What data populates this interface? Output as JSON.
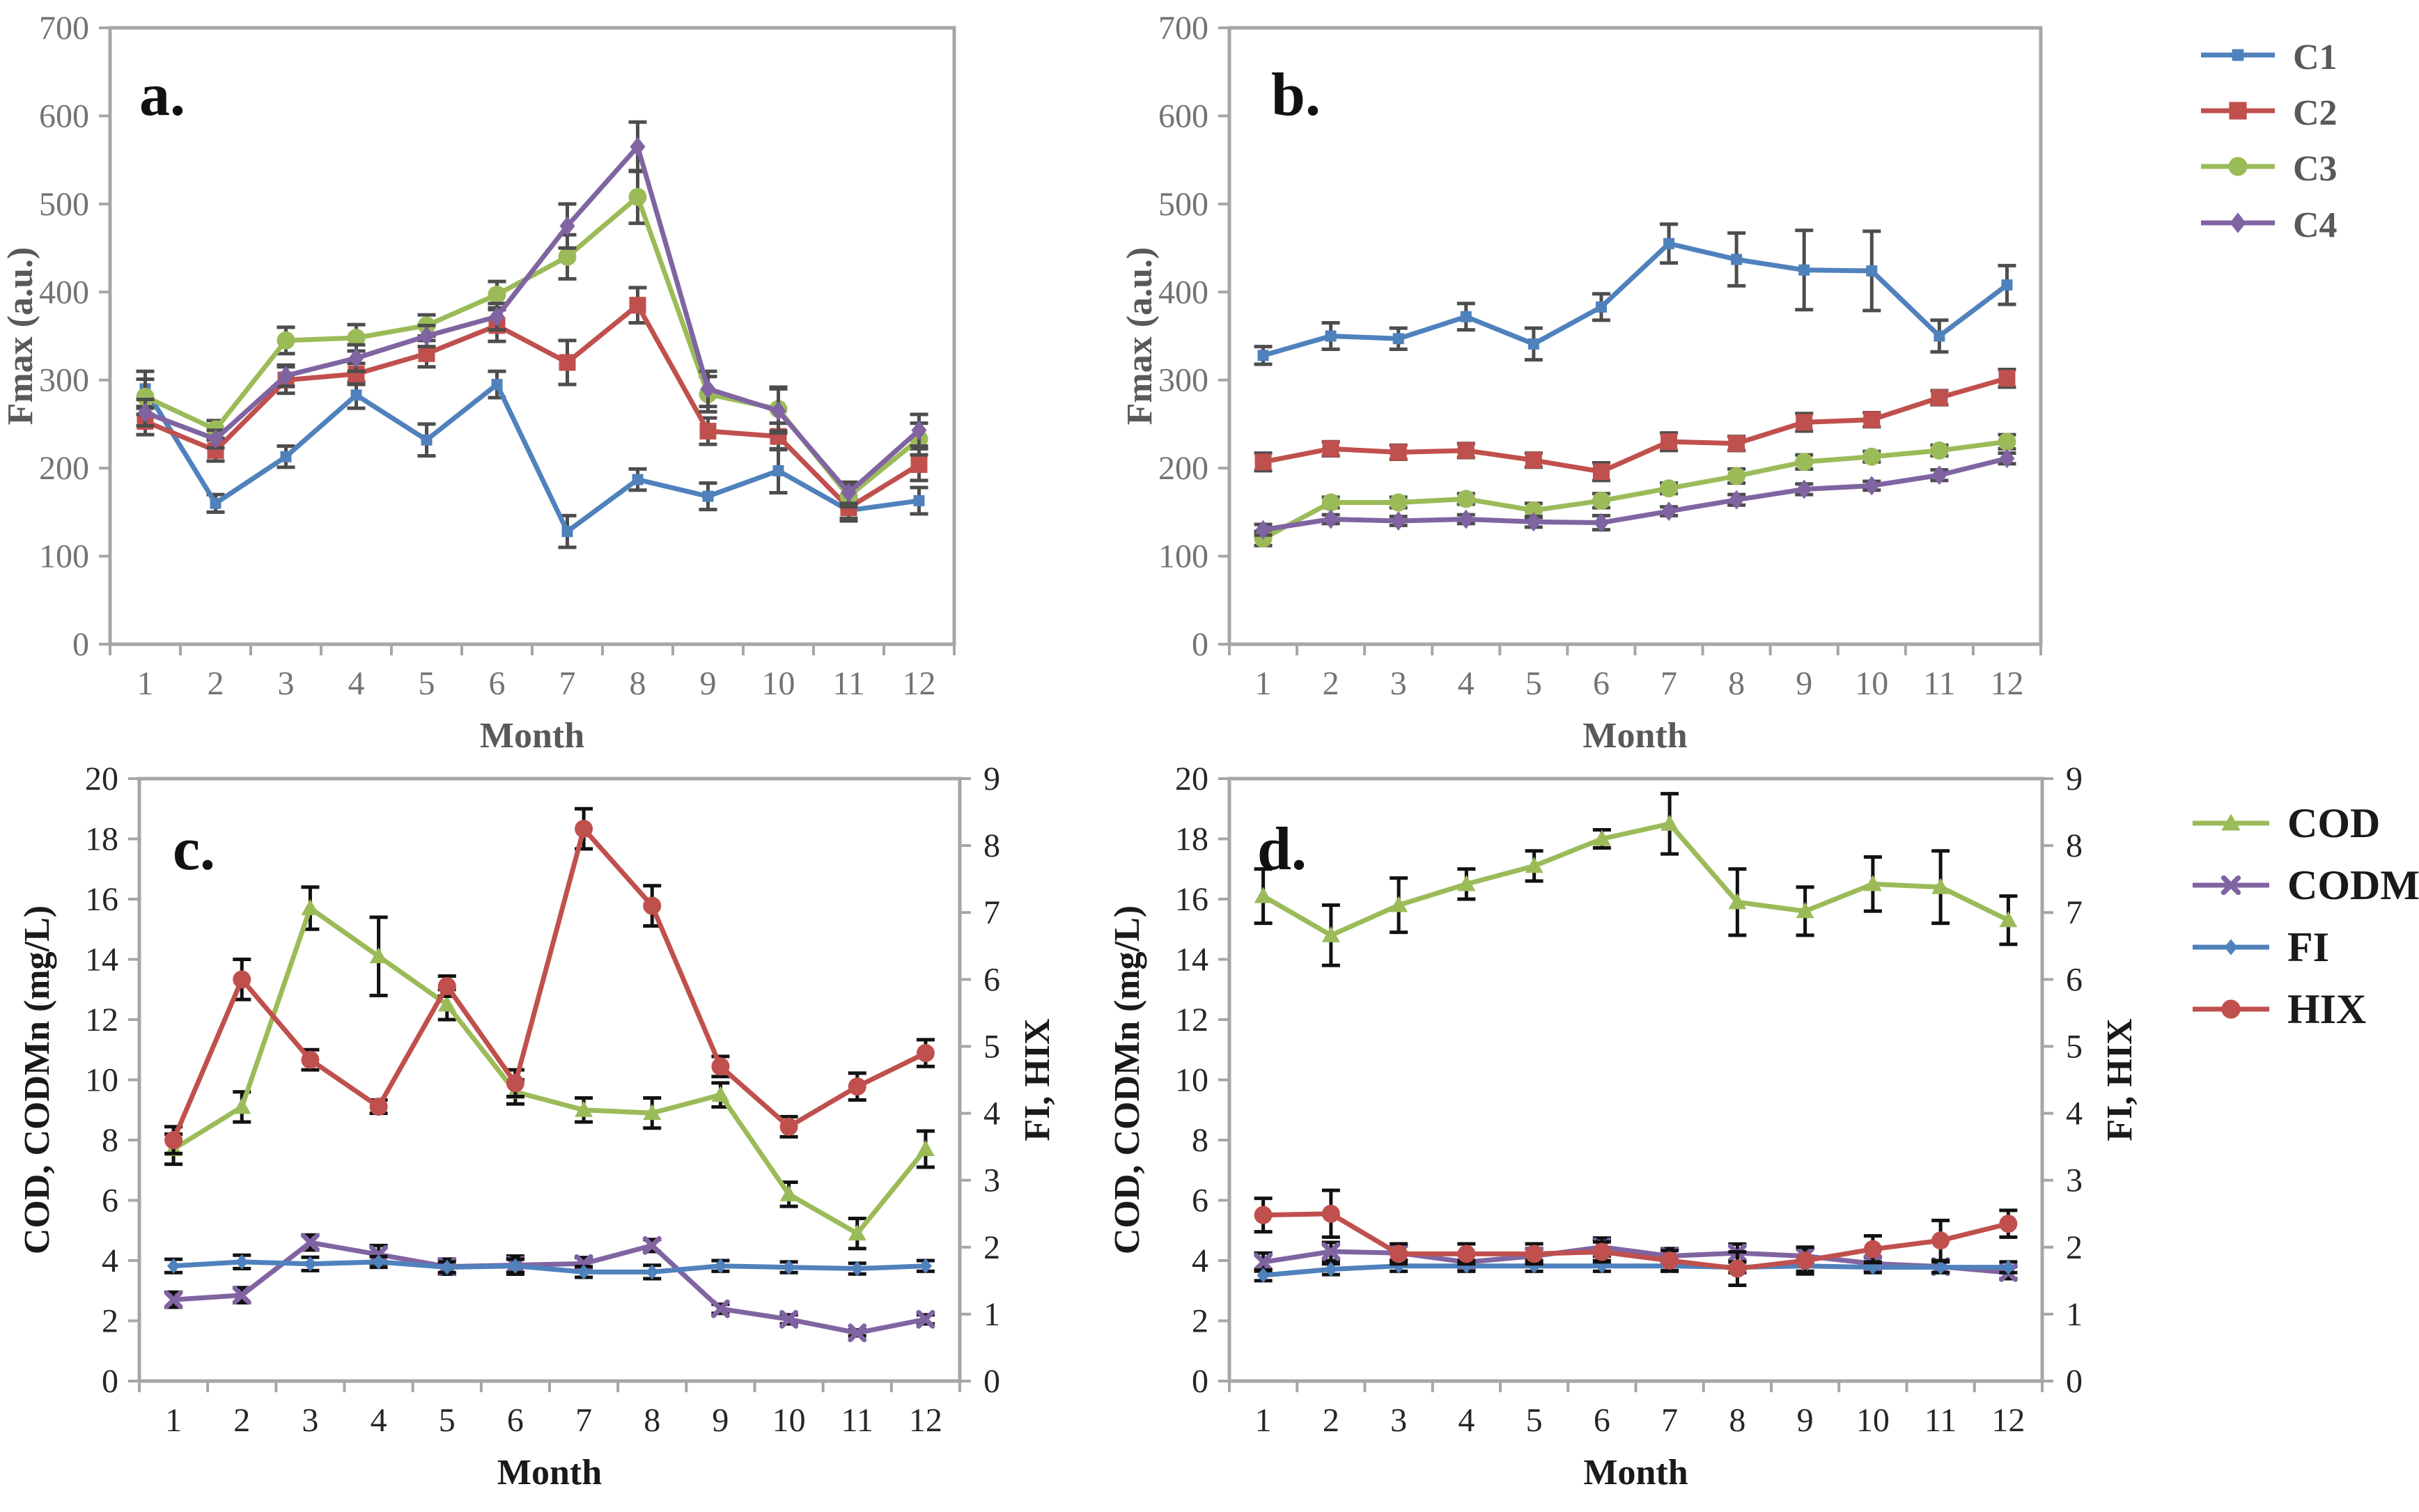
{
  "figure": {
    "bg": "#ffffff",
    "colors": {
      "c1_blue": "#4F81BD",
      "c2_red": "#C0504D",
      "c3_green": "#9BBB59",
      "c4_purple": "#8064A2",
      "axis_gray": "#A6A6A6",
      "tick_gray": "#737373",
      "tick_black": "#262626",
      "label_dark": "#595959",
      "label_black": "#1A1A1A",
      "errbar_dark": "#4D4D4D",
      "errbar_black": "#111111"
    }
  },
  "legends": [
    {
      "id": "legend-fmax",
      "entries": [
        {
          "label": "C1",
          "color": "c1_blue",
          "marker": "square-small"
        },
        {
          "label": "C2",
          "color": "c2_red",
          "marker": "square"
        },
        {
          "label": "C3",
          "color": "c3_green",
          "marker": "circle"
        },
        {
          "label": "C4",
          "color": "c4_purple",
          "marker": "diamond"
        }
      ]
    },
    {
      "id": "legend-wq",
      "entries": [
        {
          "label": "COD",
          "color": "c3_green",
          "marker": "triangle"
        },
        {
          "label": "CODMn",
          "color": "c4_purple",
          "marker": "xcross"
        },
        {
          "label": "FI",
          "color": "c1_blue",
          "marker": "diamond-small"
        },
        {
          "label": "HIX",
          "color": "c2_red",
          "marker": "circle"
        }
      ]
    }
  ],
  "chart_data": [
    {
      "id": "a",
      "type": "line",
      "panel_label": "a.",
      "xlabel": "Month",
      "ylabel": "Fmax (a.u.)",
      "x": [
        1,
        2,
        3,
        4,
        5,
        6,
        7,
        8,
        9,
        10,
        11,
        12
      ],
      "ylim": [
        0,
        700
      ],
      "ytick_step": 100,
      "series": [
        {
          "name": "C1",
          "color": "c1_blue",
          "marker": "square-small",
          "axis": "left",
          "values": [
            290,
            160,
            213,
            283,
            232,
            295,
            128,
            187,
            168,
            197,
            152,
            163
          ],
          "errors": [
            20,
            10,
            12,
            15,
            18,
            15,
            18,
            12,
            15,
            25,
            12,
            15
          ]
        },
        {
          "name": "C2",
          "color": "c2_red",
          "marker": "square",
          "axis": "left",
          "values": [
            253,
            220,
            300,
            307,
            330,
            362,
            320,
            385,
            242,
            236,
            155,
            204
          ],
          "errors": [
            15,
            12,
            15,
            12,
            15,
            18,
            25,
            20,
            15,
            15,
            12,
            18
          ]
        },
        {
          "name": "C3",
          "color": "c3_green",
          "marker": "circle",
          "axis": "left",
          "values": [
            281,
            244,
            345,
            348,
            362,
            397,
            440,
            508,
            284,
            267,
            168,
            233
          ],
          "errors": [
            20,
            10,
            15,
            15,
            12,
            15,
            25,
            30,
            20,
            25,
            12,
            18
          ]
        },
        {
          "name": "C4",
          "color": "c4_purple",
          "marker": "diamond",
          "axis": "left",
          "values": [
            263,
            233,
            305,
            325,
            350,
            372,
            475,
            565,
            290,
            265,
            172,
            243
          ],
          "errors": [
            15,
            10,
            12,
            15,
            12,
            15,
            25,
            28,
            20,
            25,
            12,
            18
          ]
        }
      ]
    },
    {
      "id": "b",
      "type": "line",
      "panel_label": "b.",
      "xlabel": "Month",
      "ylabel": "Fmax (a.u.)",
      "x": [
        1,
        2,
        3,
        4,
        5,
        6,
        7,
        8,
        9,
        10,
        11,
        12
      ],
      "ylim": [
        0,
        700
      ],
      "ytick_step": 100,
      "series": [
        {
          "name": "C1",
          "color": "c1_blue",
          "marker": "square-small",
          "axis": "left",
          "values": [
            328,
            350,
            347,
            372,
            341,
            383,
            455,
            437,
            425,
            424,
            350,
            408
          ],
          "errors": [
            10,
            15,
            12,
            15,
            18,
            15,
            22,
            30,
            45,
            45,
            18,
            22
          ]
        },
        {
          "name": "C2",
          "color": "c2_red",
          "marker": "square",
          "axis": "left",
          "values": [
            207,
            222,
            218,
            220,
            209,
            196,
            230,
            228,
            252,
            255,
            280,
            302
          ],
          "errors": [
            10,
            8,
            8,
            8,
            8,
            10,
            10,
            8,
            10,
            8,
            8,
            10
          ]
        },
        {
          "name": "C3",
          "color": "c3_green",
          "marker": "circle",
          "axis": "left",
          "values": [
            120,
            161,
            161,
            165,
            152,
            163,
            177,
            191,
            207,
            213,
            220,
            230
          ],
          "errors": [
            8,
            6,
            6,
            6,
            8,
            8,
            6,
            8,
            8,
            6,
            6,
            8
          ]
        },
        {
          "name": "C4",
          "color": "c4_purple",
          "marker": "diamond",
          "axis": "left",
          "values": [
            130,
            142,
            140,
            142,
            139,
            138,
            151,
            164,
            176,
            180,
            192,
            211
          ],
          "errors": [
            6,
            5,
            5,
            5,
            6,
            8,
            5,
            6,
            6,
            5,
            6,
            6
          ]
        }
      ]
    },
    {
      "id": "c",
      "type": "line",
      "panel_label": "c.",
      "xlabel": "Month",
      "ylabel_left": "COD, CODMn (mg/L)",
      "ylabel_right": "FI, HIX",
      "x": [
        1,
        2,
        3,
        4,
        5,
        6,
        7,
        8,
        9,
        10,
        11,
        12
      ],
      "ylim_left": [
        0,
        20
      ],
      "ytick_step_left": 2,
      "ylim_right": [
        0,
        9
      ],
      "ytick_step_right": 1,
      "series": [
        {
          "name": "COD",
          "color": "c3_green",
          "marker": "triangle",
          "axis": "left",
          "values": [
            7.7,
            9.1,
            15.7,
            14.1,
            12.5,
            9.6,
            9.0,
            8.9,
            9.5,
            6.2,
            4.9,
            7.7
          ],
          "errors": [
            0.5,
            0.5,
            0.7,
            1.3,
            0.5,
            0.4,
            0.4,
            0.5,
            0.4,
            0.4,
            0.5,
            0.6
          ]
        },
        {
          "name": "CODMn",
          "color": "c4_purple",
          "marker": "xcross",
          "axis": "left",
          "values": [
            2.7,
            2.85,
            4.6,
            4.2,
            3.8,
            3.85,
            3.9,
            4.5,
            2.4,
            2.05,
            1.6,
            2.05
          ],
          "errors": [
            0.25,
            0.25,
            0.25,
            0.3,
            0.25,
            0.3,
            0.2,
            0.2,
            0.15,
            0.15,
            0.1,
            0.15
          ]
        },
        {
          "name": "FI",
          "color": "c1_blue",
          "marker": "diamond-small",
          "axis": "right",
          "values": [
            1.72,
            1.78,
            1.75,
            1.78,
            1.7,
            1.72,
            1.63,
            1.63,
            1.72,
            1.7,
            1.68,
            1.72
          ],
          "errors": [
            0.1,
            0.1,
            0.1,
            0.08,
            0.08,
            0.1,
            0.08,
            0.1,
            0.08,
            0.08,
            0.08,
            0.08
          ]
        },
        {
          "name": "HIX",
          "color": "c2_red",
          "marker": "circle",
          "axis": "right",
          "values": [
            3.6,
            6.0,
            4.8,
            4.1,
            5.9,
            4.45,
            8.25,
            7.1,
            4.7,
            3.8,
            4.4,
            4.9
          ],
          "errors": [
            0.2,
            0.3,
            0.15,
            0.1,
            0.15,
            0.2,
            0.3,
            0.3,
            0.15,
            0.15,
            0.2,
            0.2
          ]
        }
      ]
    },
    {
      "id": "d",
      "type": "line",
      "panel_label": "d.",
      "xlabel": "Month",
      "ylabel_left": "COD, CODMn (mg/L)",
      "ylabel_right": "FI, HIX",
      "x": [
        1,
        2,
        3,
        4,
        5,
        6,
        7,
        8,
        9,
        10,
        11,
        12
      ],
      "ylim_left": [
        0,
        20
      ],
      "ytick_step_left": 2,
      "ylim_right": [
        0,
        9
      ],
      "ytick_step_right": 1,
      "series": [
        {
          "name": "COD",
          "color": "c3_green",
          "marker": "triangle",
          "axis": "left",
          "values": [
            16.1,
            14.8,
            15.8,
            16.5,
            17.1,
            18.0,
            18.5,
            15.9,
            15.6,
            16.5,
            16.4,
            15.3
          ],
          "errors": [
            0.9,
            1.0,
            0.9,
            0.5,
            0.5,
            0.3,
            1.0,
            1.1,
            0.8,
            0.9,
            1.2,
            0.8
          ]
        },
        {
          "name": "CODMn",
          "color": "c4_purple",
          "marker": "xcross",
          "axis": "left",
          "values": [
            3.95,
            4.3,
            4.25,
            3.95,
            4.15,
            4.45,
            4.15,
            4.25,
            4.15,
            3.9,
            3.8,
            3.6
          ],
          "errors": [
            0.3,
            0.3,
            0.25,
            0.25,
            0.25,
            0.3,
            0.25,
            0.3,
            0.25,
            0.2,
            0.2,
            0.2
          ]
        },
        {
          "name": "FI",
          "color": "c1_blue",
          "marker": "diamond-small",
          "axis": "right",
          "values": [
            1.58,
            1.67,
            1.72,
            1.72,
            1.72,
            1.72,
            1.72,
            1.7,
            1.72,
            1.7,
            1.7,
            1.7
          ],
          "errors": [
            0.08,
            0.08,
            0.08,
            0.08,
            0.08,
            0.08,
            0.08,
            0.08,
            0.08,
            0.08,
            0.08,
            0.08
          ]
        },
        {
          "name": "HIX",
          "color": "c2_red",
          "marker": "circle",
          "axis": "right",
          "values": [
            2.48,
            2.5,
            1.9,
            1.9,
            1.9,
            1.93,
            1.8,
            1.68,
            1.8,
            1.97,
            2.1,
            2.35
          ],
          "errors": [
            0.25,
            0.35,
            0.15,
            0.15,
            0.15,
            0.15,
            0.15,
            0.25,
            0.2,
            0.2,
            0.3,
            0.2
          ]
        }
      ]
    }
  ]
}
